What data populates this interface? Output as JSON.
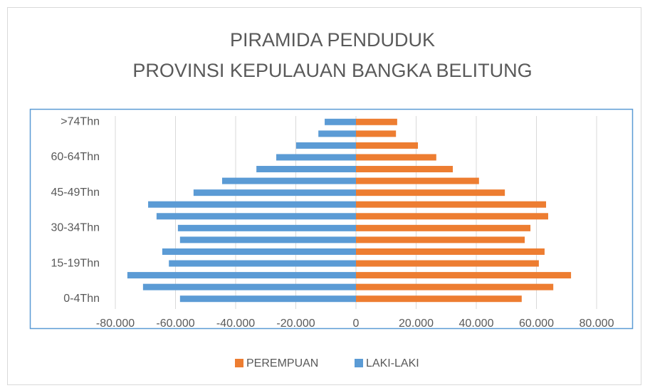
{
  "chart_data": {
    "type": "bar",
    "title": "PIRAMIDA PENDUDUK",
    "subtitle": "PROVINSI KEPULAUAN BANGKA BELITUNG",
    "categories": [
      "0-4Thn",
      null,
      null,
      "15-19Thn",
      null,
      null,
      "30-34Thn",
      null,
      null,
      "45-49Thn",
      null,
      null,
      "60-64Thn",
      null,
      null,
      ">74Thn"
    ],
    "series": [
      {
        "name": "PEREMPUAN",
        "color": "#ed7d31",
        "values": [
          55100,
          65600,
          71500,
          60800,
          62700,
          56100,
          58000,
          63900,
          63200,
          49500,
          40900,
          32200,
          26700,
          20600,
          13300,
          13700
        ]
      },
      {
        "name": "LAKI-LAKI",
        "color": "#5b9bd5",
        "values": [
          -58500,
          -70800,
          -76000,
          -62200,
          -64400,
          -58500,
          -59200,
          -66300,
          -69100,
          -54000,
          -44500,
          -33100,
          -26500,
          -19900,
          -12500,
          -10400
        ]
      }
    ],
    "xlim": [
      -80000,
      80000
    ],
    "xticks": [
      {
        "value": -80000,
        "label": "-80.000"
      },
      {
        "value": -60000,
        "label": "-60.000"
      },
      {
        "value": -40000,
        "label": "-40.000"
      },
      {
        "value": -20000,
        "label": "-20.000"
      },
      0,
      {
        "value": 20000,
        "label": "20.000"
      },
      {
        "value": 40000,
        "label": "40.000"
      },
      {
        "value": 60000,
        "label": "60.000"
      },
      {
        "value": 80000,
        "label": "80.000"
      }
    ],
    "grid": true,
    "legend": "bottom"
  }
}
